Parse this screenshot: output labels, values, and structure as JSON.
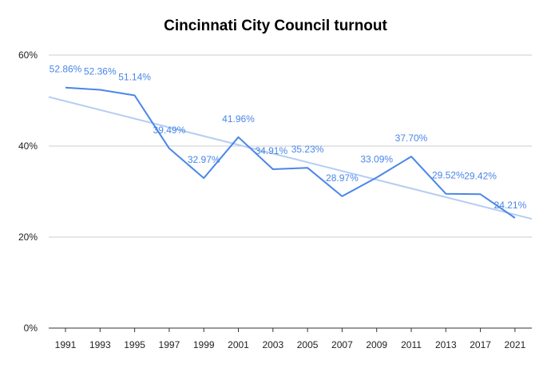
{
  "chart_data": {
    "type": "line",
    "title": "Cincinnati City Council turnout",
    "xlabel": "",
    "ylabel": "",
    "categories": [
      "1991",
      "1993",
      "1995",
      "1997",
      "1999",
      "2001",
      "2003",
      "2005",
      "2007",
      "2009",
      "2011",
      "2013",
      "2017",
      "2021"
    ],
    "series": [
      {
        "values": [
          52.86,
          52.36,
          51.14,
          39.49,
          32.97,
          41.96,
          34.91,
          35.23,
          28.97,
          33.09,
          37.7,
          29.52,
          29.42,
          24.21
        ],
        "labels": [
          "52.86%",
          "52.36%",
          "51.14%",
          "39.49%",
          "32.97%",
          "41.96%",
          "34.91%",
          "35.23%",
          "28.97%",
          "33.09%",
          "37.70%",
          "29.52%",
          "29.42%",
          "24.21%"
        ],
        "color": "#4a86e8"
      }
    ],
    "trendline": {
      "color": "#b4cdf3",
      "start": 50.8,
      "end": 24.0
    },
    "ylim": [
      0,
      60
    ],
    "yticks": [
      0,
      20,
      40,
      60
    ],
    "ytick_labels": [
      "0%",
      "20%",
      "40%",
      "60%"
    ],
    "grid": true,
    "legend": "none"
  }
}
